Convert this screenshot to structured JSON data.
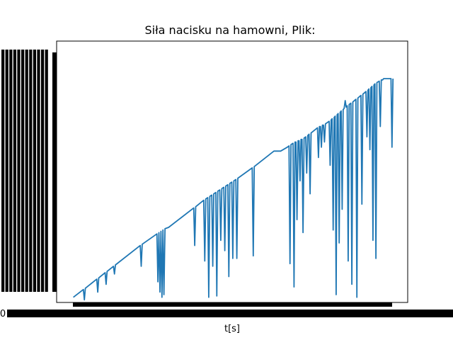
{
  "chart_data": {
    "type": "line",
    "title": "Siła nacisku na hamowni, Plik:",
    "xlabel": "t[s]",
    "ylabel": "",
    "x_tick_first_label": "0",
    "tick_labels_overlapping": true,
    "grid": false,
    "legend": "none",
    "line_color": "#1f77b4",
    "xlim": [
      -5,
      100
    ],
    "ylim": [
      -2,
      99
    ],
    "series": [
      {
        "x": [
          0,
          3,
          3.3,
          3.6,
          7,
          7.3,
          7.6,
          9.5,
          9.8,
          10.1,
          12,
          12.3,
          12.6,
          20,
          20.3,
          20.6,
          25,
          25.3,
          25.6,
          25.9,
          26.2,
          26.5,
          26.8,
          27.1,
          27.4,
          28.5,
          36,
          36.3,
          36.6,
          39,
          39.3,
          39.6,
          40.2,
          40.5,
          40.8,
          41.4,
          41.7,
          42,
          42.6,
          42.9,
          43.2,
          43.8,
          44.1,
          44.4,
          45,
          45.3,
          45.6,
          46.2,
          46.5,
          46.8,
          47.4,
          47.7,
          48,
          48.6,
          48.9,
          49.2,
          53.5,
          53.8,
          54.1,
          60,
          62,
          64,
          64.5,
          64.8,
          65.1,
          65.7,
          66,
          66.3,
          66.6,
          66.9,
          67.2,
          67.5,
          67.8,
          68.1,
          68.4,
          68.7,
          69,
          69.5,
          69.8,
          70.1,
          70.5,
          70.8,
          71.1,
          73,
          73.3,
          73.6,
          73.9,
          74.2,
          74.5,
          74.8,
          75.1,
          75.4,
          76.5,
          76.8,
          77.1,
          77.4,
          77.7,
          78,
          78.3,
          78.6,
          78.9,
          79.2,
          79.5,
          79.8,
          80.1,
          80.4,
          80.7,
          81,
          81.3,
          81.6,
          81.9,
          82.2,
          82.5,
          83,
          83.3,
          83.6,
          84.5,
          84.8,
          85.1,
          86,
          86.3,
          86.6,
          87.5,
          87.8,
          88.1,
          88.4,
          88.7,
          89,
          89.3,
          89.6,
          89.9,
          90.2,
          90.5,
          90.8,
          91.5,
          91.8,
          92.1,
          92.3,
          92.5,
          92.8,
          95,
          95.3,
          95.6
        ],
        "y": [
          0,
          3,
          -1,
          3.5,
          7,
          2,
          7.5,
          9.5,
          5,
          10,
          12,
          9,
          12.5,
          20,
          12,
          20.5,
          24.5,
          6,
          25,
          2,
          25.5,
          0,
          26,
          1,
          26.5,
          27,
          34.5,
          20,
          35,
          37.5,
          14,
          38,
          38.5,
          0,
          39,
          39.5,
          12,
          40,
          40.5,
          0.5,
          41,
          41.5,
          22,
          42,
          42.5,
          18,
          43,
          43.5,
          8,
          44,
          44.5,
          15,
          45,
          45.5,
          15,
          46,
          50,
          16,
          50.5,
          56.5,
          56.5,
          58,
          58.5,
          13,
          59,
          59.5,
          4,
          60,
          60,
          30,
          60.5,
          60.5,
          45,
          61,
          61,
          25,
          61.5,
          62,
          48,
          62.5,
          63,
          40,
          63.5,
          65.5,
          54,
          66,
          66,
          58,
          66.5,
          66.5,
          60,
          67,
          68,
          51,
          68.5,
          69,
          26,
          69.5,
          70,
          1,
          70.5,
          71,
          21,
          71.5,
          72,
          34,
          72.5,
          73,
          76,
          73.5,
          74,
          14,
          74.5,
          75,
          5,
          75.5,
          76.5,
          0,
          77,
          78,
          36,
          78.5,
          79.5,
          62,
          80,
          80.5,
          57,
          81,
          81.5,
          22,
          82,
          82.5,
          15,
          83,
          83.5,
          66,
          84,
          84,
          84,
          84.5,
          84.5,
          58,
          84.5
        ]
      }
    ]
  }
}
